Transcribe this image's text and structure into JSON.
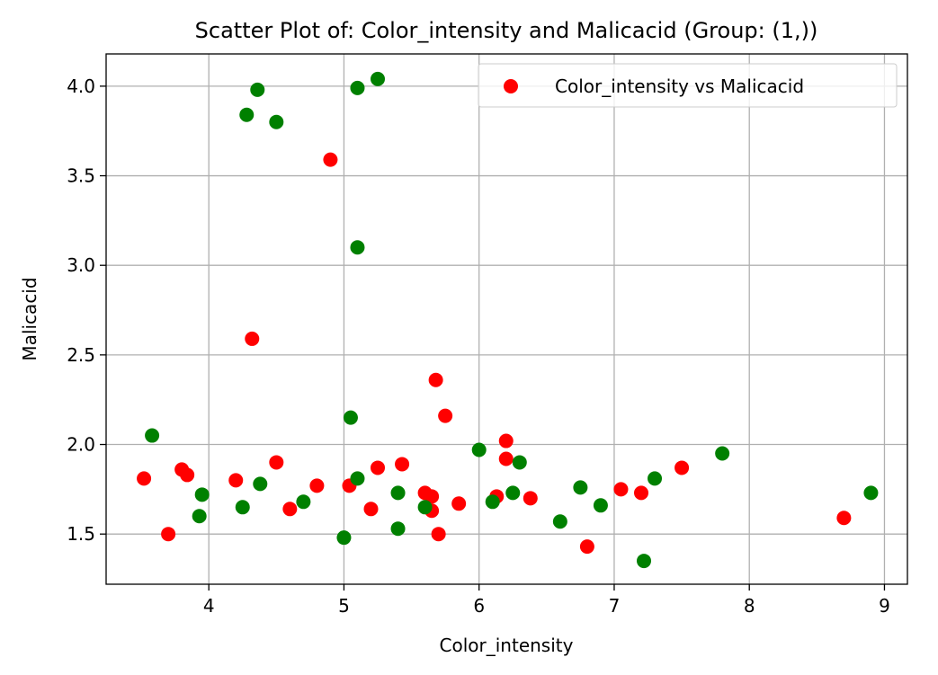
{
  "chart_data": {
    "type": "scatter",
    "title": "Scatter Plot of: Color_intensity and Malicacid (Group: (1,))",
    "xlabel": "Color_intensity",
    "ylabel": "Malicacid",
    "xlim": [
      3.24,
      9.17
    ],
    "ylim": [
      1.22,
      4.18
    ],
    "xticks": [
      4,
      5,
      6,
      7,
      8,
      9
    ],
    "yticks": [
      1.5,
      2.0,
      2.5,
      3.0,
      3.5,
      4.0
    ],
    "xtick_labels": [
      "4",
      "5",
      "6",
      "7",
      "8",
      "9"
    ],
    "ytick_labels": [
      "1.5",
      "2.0",
      "2.5",
      "3.0",
      "3.5",
      "4.0"
    ],
    "grid": true,
    "legend_position": "top-right",
    "colors": {
      "red": "#ff0000",
      "green": "#008000",
      "grid": "#b0b0b0"
    },
    "series": [
      {
        "name": "Color_intensity vs Malicacid",
        "color": "#ff0000",
        "show_in_legend": true,
        "points": [
          [
            3.52,
            1.81
          ],
          [
            3.7,
            1.5
          ],
          [
            3.8,
            1.86
          ],
          [
            3.84,
            1.83
          ],
          [
            4.2,
            1.8
          ],
          [
            4.32,
            2.59
          ],
          [
            4.5,
            1.9
          ],
          [
            4.6,
            1.64
          ],
          [
            4.8,
            1.77
          ],
          [
            4.9,
            3.59
          ],
          [
            5.04,
            1.77
          ],
          [
            5.2,
            1.64
          ],
          [
            5.25,
            1.87
          ],
          [
            5.43,
            1.89
          ],
          [
            5.6,
            1.73
          ],
          [
            5.65,
            1.71
          ],
          [
            5.65,
            1.63
          ],
          [
            5.68,
            2.36
          ],
          [
            5.7,
            1.5
          ],
          [
            5.75,
            2.16
          ],
          [
            5.85,
            1.67
          ],
          [
            6.13,
            1.71
          ],
          [
            6.2,
            2.02
          ],
          [
            6.2,
            1.92
          ],
          [
            6.38,
            1.7
          ],
          [
            6.8,
            1.43
          ],
          [
            7.05,
            1.75
          ],
          [
            7.2,
            1.73
          ],
          [
            7.5,
            1.87
          ],
          [
            8.7,
            1.59
          ]
        ]
      },
      {
        "name": "",
        "color": "#008000",
        "show_in_legend": false,
        "points": [
          [
            3.58,
            2.05
          ],
          [
            3.93,
            1.6
          ],
          [
            3.95,
            1.72
          ],
          [
            4.25,
            1.65
          ],
          [
            4.28,
            3.84
          ],
          [
            4.36,
            3.98
          ],
          [
            4.38,
            1.78
          ],
          [
            4.5,
            3.8
          ],
          [
            4.7,
            1.68
          ],
          [
            5.0,
            1.48
          ],
          [
            5.05,
            2.15
          ],
          [
            5.1,
            3.99
          ],
          [
            5.1,
            3.1
          ],
          [
            5.1,
            1.81
          ],
          [
            5.25,
            4.04
          ],
          [
            5.4,
            1.73
          ],
          [
            5.4,
            1.53
          ],
          [
            5.6,
            1.65
          ],
          [
            6.0,
            1.97
          ],
          [
            6.1,
            1.68
          ],
          [
            6.25,
            1.73
          ],
          [
            6.3,
            1.9
          ],
          [
            6.6,
            1.57
          ],
          [
            6.75,
            1.76
          ],
          [
            6.9,
            1.66
          ],
          [
            7.22,
            1.35
          ],
          [
            7.3,
            1.81
          ],
          [
            7.8,
            1.95
          ],
          [
            8.9,
            1.73
          ]
        ]
      }
    ]
  }
}
